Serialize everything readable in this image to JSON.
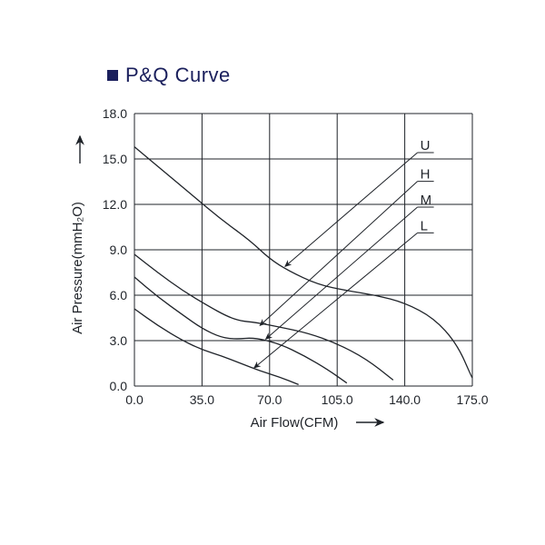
{
  "title": "P&Q Curve",
  "title_color": "#1a1f5c",
  "bullet_color": "#1a1f5c",
  "chart": {
    "type": "line",
    "background_color": "#ffffff",
    "line_color": "#1f2329",
    "grid_color": "#1f2329",
    "line_width": 1.3,
    "grid_width": 1.0,
    "xlabel": "Air Flow(CFM)",
    "ylabel": "Air Pressure(mmH₂O)",
    "label_fontsize": 15,
    "tick_fontsize": 14,
    "xlim": [
      0,
      175
    ],
    "ylim": [
      0,
      18
    ],
    "xticks": [
      0.0,
      35.0,
      70.0,
      105.0,
      140.0,
      175.0
    ],
    "yticks": [
      0.0,
      3.0,
      6.0,
      9.0,
      12.0,
      15.0,
      18.0
    ],
    "series": [
      {
        "name": "U",
        "data": [
          [
            0,
            15.8
          ],
          [
            15,
            14.2
          ],
          [
            30,
            12.6
          ],
          [
            45,
            11.0
          ],
          [
            60,
            9.6
          ],
          [
            70,
            8.4
          ],
          [
            80,
            7.6
          ],
          [
            95,
            6.7
          ],
          [
            110,
            6.3
          ],
          [
            125,
            6.0
          ],
          [
            140,
            5.5
          ],
          [
            155,
            4.5
          ],
          [
            167,
            2.8
          ],
          [
            175,
            0.5
          ]
        ],
        "label_pos": [
          148,
          15.6
        ],
        "arrow_to": [
          78,
          7.9
        ]
      },
      {
        "name": "H",
        "data": [
          [
            0,
            8.7
          ],
          [
            12,
            7.5
          ],
          [
            25,
            6.3
          ],
          [
            38,
            5.3
          ],
          [
            48,
            4.6
          ],
          [
            55,
            4.3
          ],
          [
            63,
            4.2
          ],
          [
            75,
            3.9
          ],
          [
            90,
            3.5
          ],
          [
            105,
            2.8
          ],
          [
            120,
            1.8
          ],
          [
            134,
            0.4
          ]
        ],
        "label_pos": [
          148,
          13.7
        ],
        "arrow_to": [
          65,
          4.0
        ]
      },
      {
        "name": "M",
        "data": [
          [
            0,
            7.2
          ],
          [
            12,
            5.9
          ],
          [
            25,
            4.7
          ],
          [
            35,
            3.8
          ],
          [
            45,
            3.2
          ],
          [
            53,
            3.1
          ],
          [
            62,
            3.2
          ],
          [
            75,
            2.8
          ],
          [
            88,
            2.0
          ],
          [
            100,
            1.1
          ],
          [
            110,
            0.2
          ]
        ],
        "label_pos": [
          148,
          12.0
        ],
        "arrow_to": [
          68,
          3.1
        ]
      },
      {
        "name": "L",
        "data": [
          [
            0,
            5.1
          ],
          [
            12,
            4.0
          ],
          [
            25,
            3.0
          ],
          [
            35,
            2.4
          ],
          [
            45,
            2.0
          ],
          [
            55,
            1.5
          ],
          [
            65,
            1.0
          ],
          [
            75,
            0.6
          ],
          [
            85,
            0.1
          ]
        ],
        "label_pos": [
          148,
          10.3
        ],
        "arrow_to": [
          62,
          1.2
        ]
      }
    ]
  }
}
